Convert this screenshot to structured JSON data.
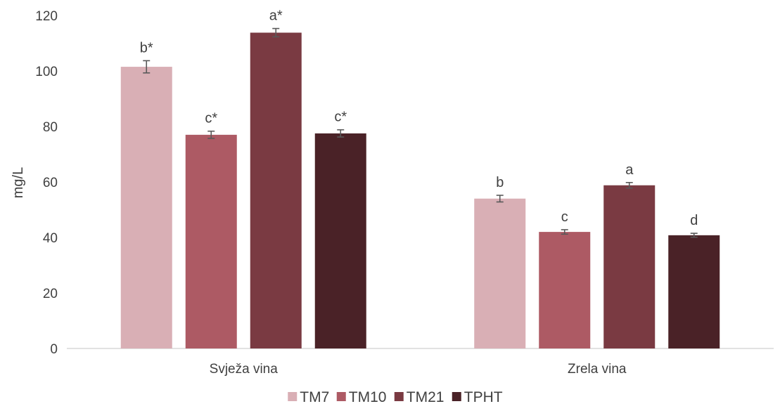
{
  "chart_data": {
    "type": "bar",
    "title": "",
    "xlabel": "",
    "ylabel": "mg/L",
    "ylim": [
      0,
      120
    ],
    "yticks": [
      0,
      20,
      40,
      60,
      80,
      100,
      120
    ],
    "grid": false,
    "legend_position": "bottom",
    "categories": [
      "Svježa vina",
      "Zrela vina"
    ],
    "series": [
      {
        "name": "TM7",
        "color": "#d9afb5",
        "values": [
          101.5,
          54.0
        ],
        "errors": [
          2.2,
          1.2
        ],
        "labels": [
          "b*",
          "b"
        ]
      },
      {
        "name": "TM10",
        "color": "#ad5a64",
        "values": [
          77.0,
          42.0
        ],
        "errors": [
          1.3,
          0.8
        ],
        "labels": [
          "c*",
          "c"
        ]
      },
      {
        "name": "TM21",
        "color": "#7a3a42",
        "values": [
          113.8,
          58.8
        ],
        "errors": [
          1.5,
          1.0
        ],
        "labels": [
          "a*",
          "a"
        ]
      },
      {
        "name": "TPHT",
        "color": "#4a2227",
        "values": [
          77.5,
          40.8
        ],
        "errors": [
          1.3,
          0.7
        ],
        "labels": [
          "c*",
          "d"
        ]
      }
    ]
  }
}
